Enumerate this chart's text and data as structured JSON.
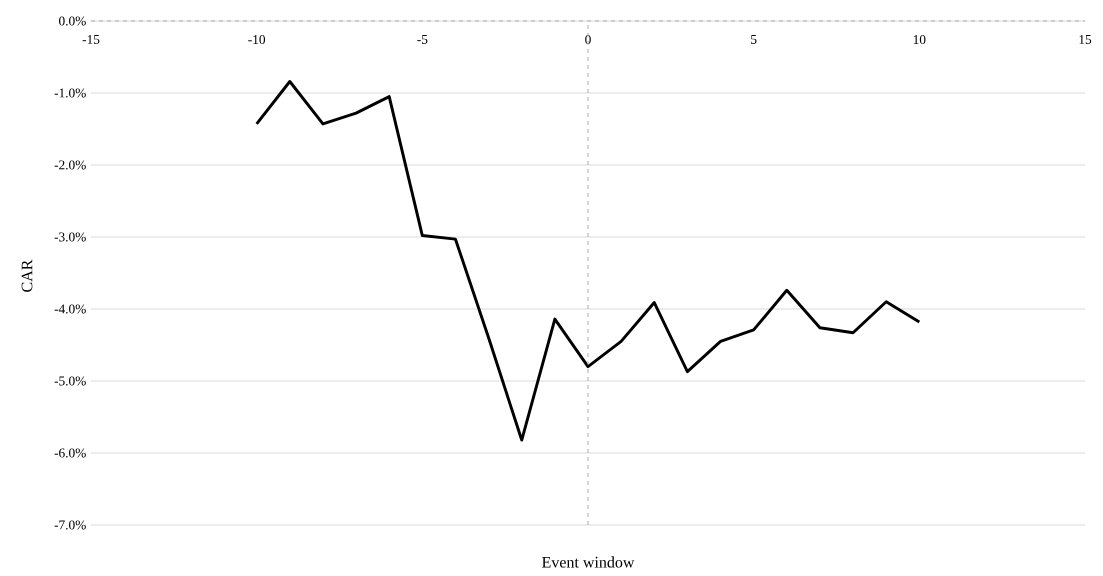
{
  "chart_data": {
    "type": "line",
    "xlabel": "Event window",
    "ylabel": "CAR",
    "x": [
      -10,
      -9,
      -8,
      -7,
      -6,
      -5,
      -4,
      -3,
      -2,
      -1,
      0,
      1,
      2,
      3,
      4,
      5,
      6,
      7,
      8,
      9,
      10
    ],
    "series": [
      {
        "color": "#000000",
        "values": [
          -1.43,
          -0.84,
          -1.43,
          -1.28,
          -1.05,
          -2.98,
          -3.03,
          -4.4,
          -5.82,
          -4.14,
          -4.8,
          -4.45,
          -3.91,
          -4.87,
          -4.45,
          -4.29,
          -3.74,
          -4.26,
          -4.33,
          -3.9,
          -4.18
        ]
      }
    ],
    "xlim": [
      -15,
      15
    ],
    "xticks": [
      -15,
      -10,
      -5,
      0,
      5,
      10,
      15
    ],
    "ylim": [
      -7,
      0
    ],
    "yticks": [
      {
        "value": 0,
        "label": "0.0%"
      },
      {
        "value": -1,
        "label": "-1.0%"
      },
      {
        "value": -2,
        "label": "-2.0%"
      },
      {
        "value": -3,
        "label": "-3.0%"
      },
      {
        "value": -4,
        "label": "-4.0%"
      },
      {
        "value": -5,
        "label": "-5.0%"
      },
      {
        "value": -6,
        "label": "-6.0%"
      },
      {
        "value": -7,
        "label": "-7.0%"
      }
    ],
    "grid": "y",
    "ref_lines": [
      {
        "axis": "x",
        "value": 0,
        "color": "#a6a6a6",
        "line_style": "dashed"
      }
    ],
    "marker": "none",
    "line_style": "solid"
  }
}
